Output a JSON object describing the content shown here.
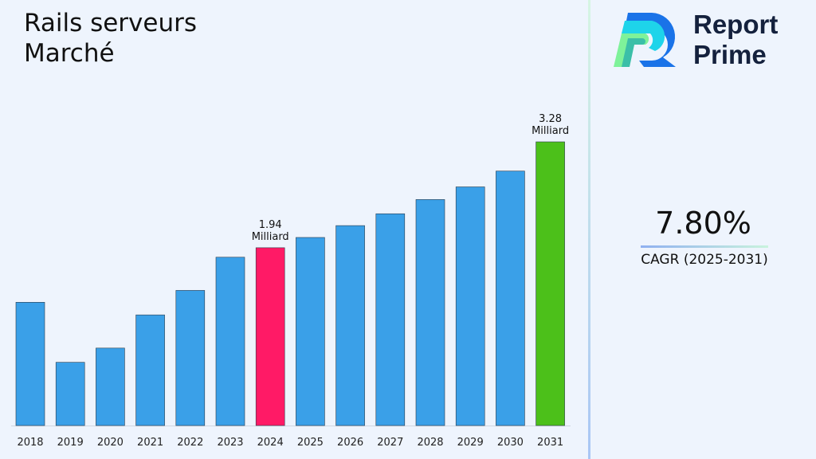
{
  "title": "Rails serveurs\nMarché",
  "brand": {
    "line1": "Report",
    "line2": "Prime"
  },
  "cagr": {
    "value": "7.80%",
    "label": "CAGR (2025-2031)"
  },
  "chart_data": {
    "type": "bar",
    "title": "Rails serveurs Marché",
    "categories": [
      "2018",
      "2019",
      "2020",
      "2021",
      "2022",
      "2023",
      "2024",
      "2025",
      "2026",
      "2027",
      "2028",
      "2029",
      "2030",
      "2031"
    ],
    "values": [
      1.25,
      0.49,
      0.67,
      1.09,
      1.4,
      1.82,
      1.94,
      2.07,
      2.22,
      2.37,
      2.55,
      2.71,
      2.91,
      3.28
    ],
    "colors": [
      "#3aa0e8",
      "#3aa0e8",
      "#3aa0e8",
      "#3aa0e8",
      "#3aa0e8",
      "#3aa0e8",
      "#ff1a66",
      "#3aa0e8",
      "#3aa0e8",
      "#3aa0e8",
      "#3aa0e8",
      "#3aa0e8",
      "#3aa0e8",
      "#4cc01a"
    ],
    "data_labels": {
      "2024": [
        "1.94",
        "Milliard"
      ],
      "2031": [
        "3.28",
        "Milliard"
      ]
    },
    "ylim": [
      -0.31,
      3.28
    ],
    "y_axis_visible": false,
    "grid": false
  }
}
